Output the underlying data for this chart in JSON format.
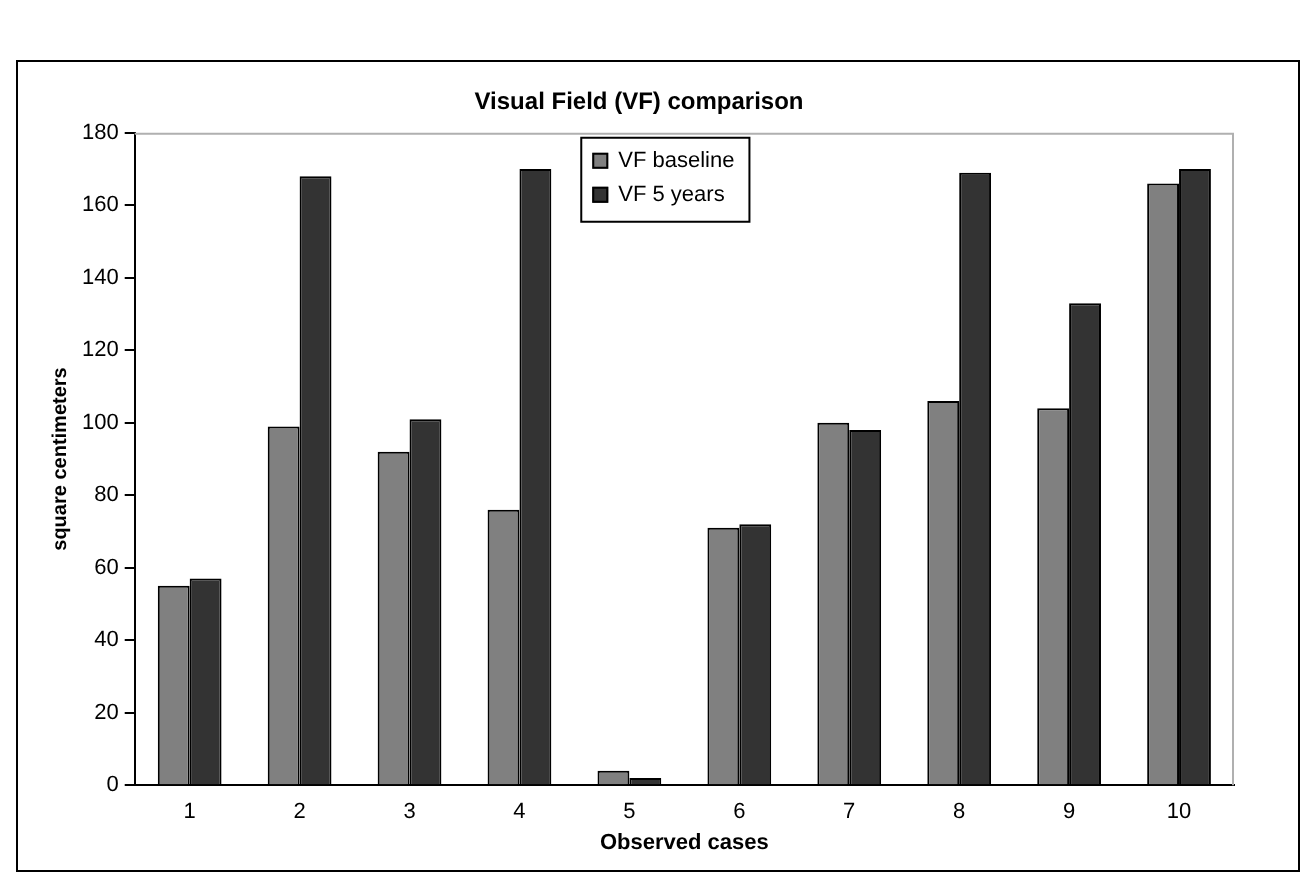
{
  "chart_data": {
    "type": "bar",
    "title": "Visual Field (VF) comparison",
    "xlabel": "Observed cases",
    "ylabel": "square centimeters",
    "categories": [
      "1",
      "2",
      "3",
      "4",
      "5",
      "6",
      "7",
      "8",
      "9",
      "10"
    ],
    "series": [
      {
        "name": "VF baseline",
        "color": "#808080",
        "values": [
          55,
          99,
          92,
          76,
          4,
          71,
          100,
          106,
          104,
          166
        ]
      },
      {
        "name": "VF 5 years",
        "color": "#333333",
        "values": [
          57,
          168,
          101,
          170,
          2,
          72,
          98,
          169,
          133,
          170
        ]
      }
    ],
    "ylim": [
      0,
      180
    ],
    "yticks": [
      0,
      20,
      40,
      60,
      80,
      100,
      120,
      140,
      160,
      180
    ],
    "grid": false,
    "legend": "top"
  }
}
